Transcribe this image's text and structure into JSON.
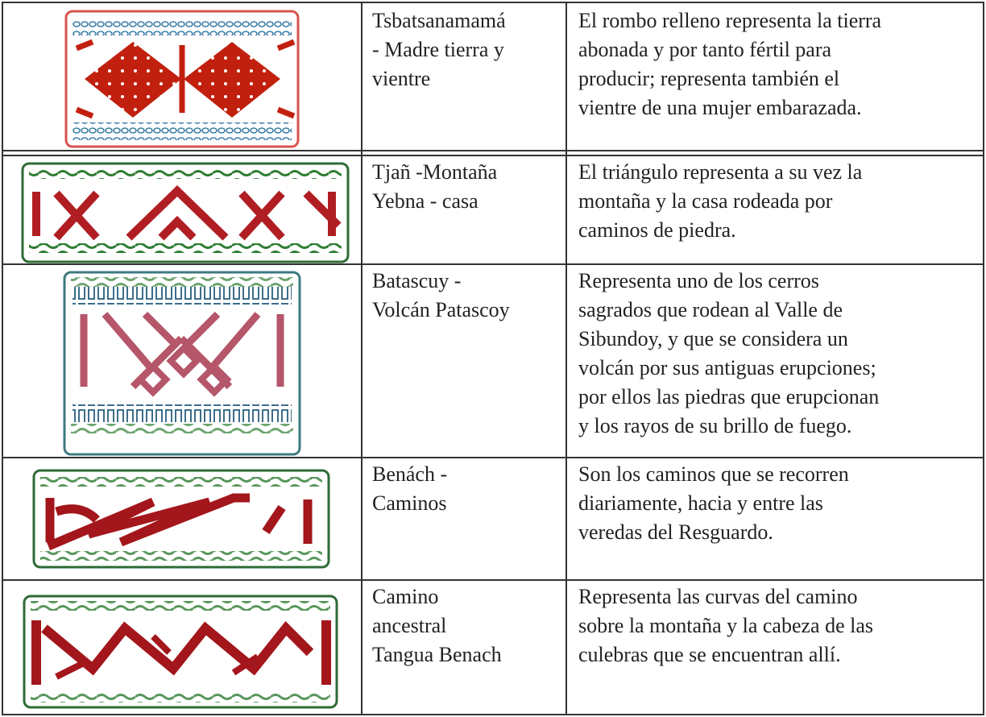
{
  "table": {
    "rows": [
      {
        "name": [
          "Tsbatsanamamá",
          "- Madre tierra y",
          "vientre"
        ],
        "description": [
          "El rombo relleno representa la tierra",
          "abonada y por tanto fértil para",
          "producir; representa también el",
          "vientre de una mujer embarazada."
        ]
      },
      {
        "name": [
          "Tjañ -Montaña",
          "Yebna - casa"
        ],
        "description": [
          "El triángulo representa a su vez la",
          "montaña y la casa rodeada por",
          "caminos de piedra."
        ]
      },
      {
        "name": [
          "Batascuy -",
          "Volcán Patascoy"
        ],
        "description": [
          "Representa uno de los cerros",
          "sagrados que rodean al Valle de",
          "Sibundoy, y que se considera un",
          "volcán por sus antiguas erupciones;",
          "por ellos las piedras que erupcionan",
          "y los rayos de su brillo de fuego."
        ]
      },
      {
        "name": [
          "Benách -",
          "Caminos"
        ],
        "description": [
          "Son los caminos que se recorren",
          "diariamente, hacia y entre las",
          "veredas del Resguardo."
        ]
      },
      {
        "name": [
          "Camino",
          "ancestral",
          "Tangua Benach"
        ],
        "description": [
          "Representa las curvas del camino",
          "sobre la montaña y la cabeza de las",
          "culebras que se encuentran allí."
        ]
      }
    ]
  }
}
